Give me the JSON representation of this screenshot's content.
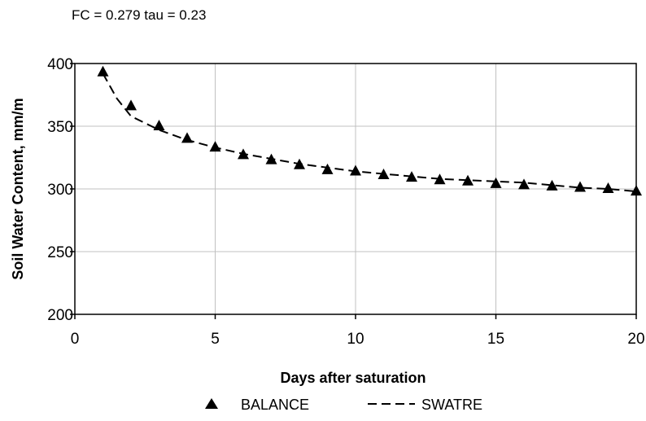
{
  "chart_data": {
    "type": "scatter",
    "subtitle": "FC = 0.279  tau = 0.23",
    "xlabel": "Days after saturation",
    "ylabel": "Soil Water Content, mm/m",
    "xlim": [
      0,
      20
    ],
    "ylim": [
      200,
      400
    ],
    "xticks": [
      "0",
      "5",
      "10",
      "15",
      "20"
    ],
    "yticks": [
      "200",
      "250",
      "300",
      "350",
      "400"
    ],
    "grid": true,
    "legend_position": "bottom",
    "series": [
      {
        "name": "BALANCE",
        "style": "triangle-markers",
        "color": "#000000",
        "x": [
          1,
          2,
          3,
          4,
          5,
          6,
          7,
          8,
          9,
          10,
          11,
          12,
          13,
          14,
          15,
          16,
          17,
          18,
          19,
          20
        ],
        "y": [
          393,
          366,
          350,
          340,
          333,
          327,
          323,
          319,
          315,
          314,
          311,
          309,
          307,
          306,
          304,
          303,
          302,
          301,
          300,
          298
        ]
      },
      {
        "name": "SWATRE",
        "style": "dashed-line",
        "color": "#000000",
        "x": [
          1,
          1.5,
          2,
          3,
          4,
          5,
          6,
          7,
          8,
          9,
          10,
          11,
          12,
          13,
          14,
          15,
          16,
          17,
          18,
          19,
          20
        ],
        "y": [
          392,
          372,
          358,
          347,
          339,
          333,
          328,
          324,
          320,
          317,
          314,
          312,
          310,
          308,
          307,
          306,
          305,
          303,
          301,
          300,
          298
        ]
      }
    ]
  }
}
